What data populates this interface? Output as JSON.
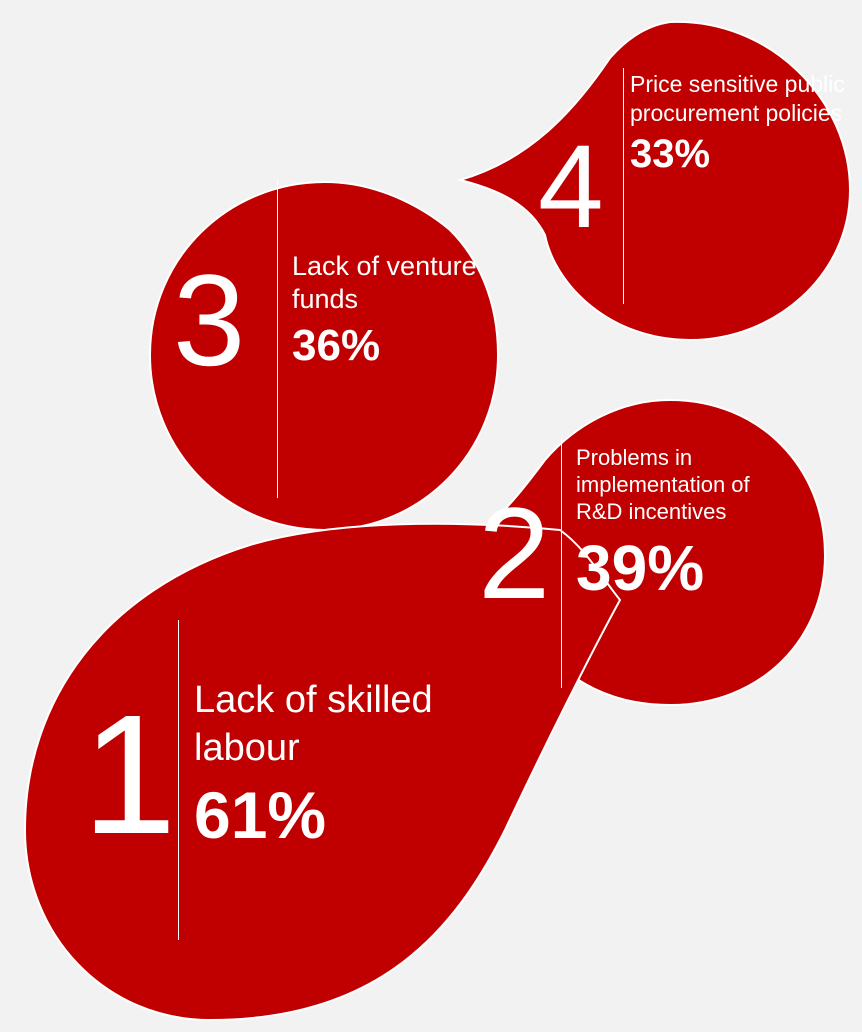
{
  "items": [
    {
      "rank": "1",
      "label": "Lack of skilled labour",
      "percent": "61%",
      "value": 61
    },
    {
      "rank": "2",
      "label": "Problems in implementation of R&D incentives",
      "percent": "39%",
      "value": 39
    },
    {
      "rank": "3",
      "label": "Lack of venture funds",
      "percent": "36%",
      "value": 36
    },
    {
      "rank": "4",
      "label": "Price sensitive public procurement policies",
      "percent": "33%",
      "value": 33
    }
  ],
  "colors": {
    "shape": "#c00000",
    "text": "#ffffff",
    "background": "#f2f2f2"
  }
}
